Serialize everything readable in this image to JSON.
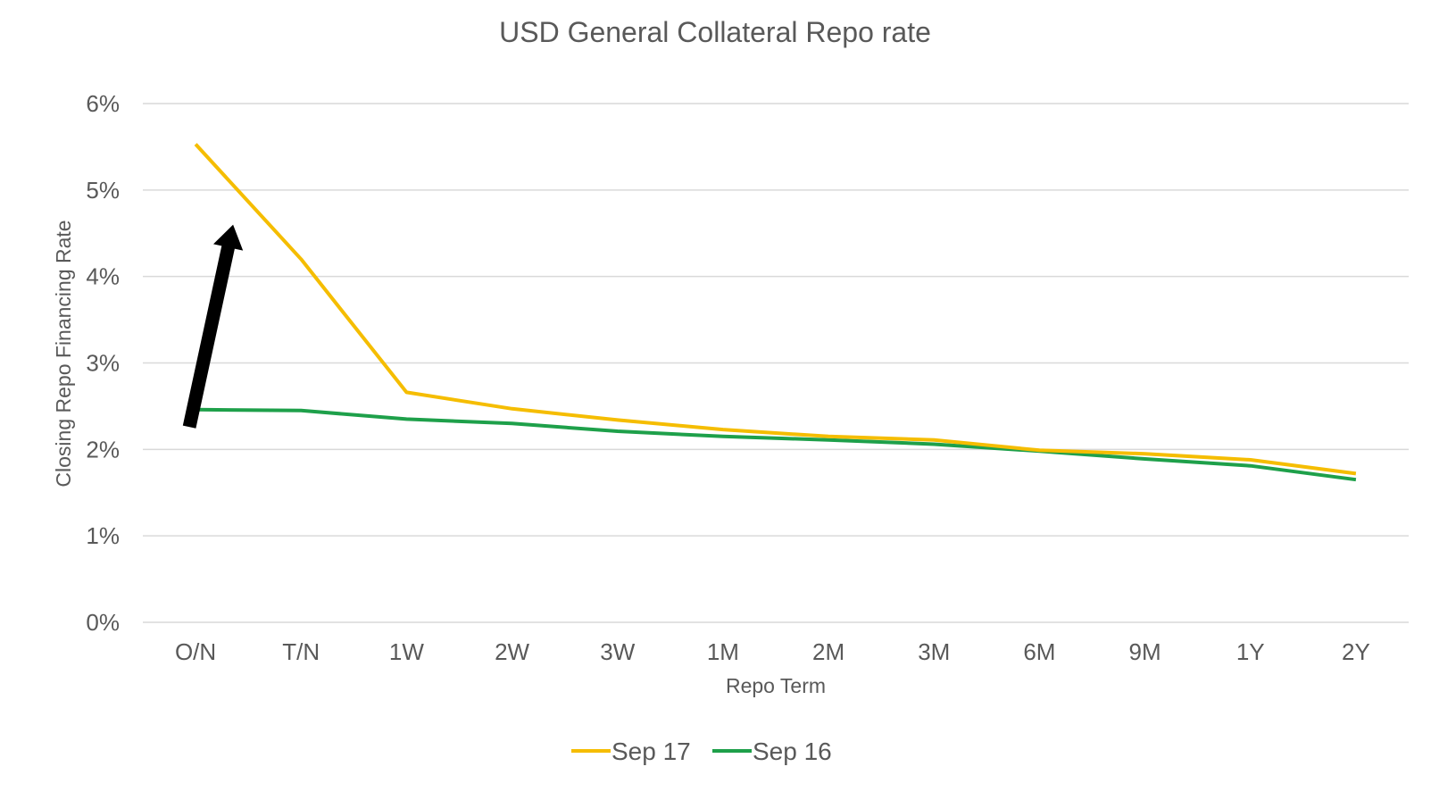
{
  "chart_data": {
    "type": "line",
    "title": "USD General Collateral Repo rate",
    "xlabel": "Repo Term",
    "ylabel": "Closing Repo Financing Rate",
    "categories": [
      "O/N",
      "T/N",
      "1W",
      "2W",
      "3W",
      "1M",
      "2M",
      "3M",
      "6M",
      "9M",
      "1Y",
      "2Y"
    ],
    "ylim": [
      0,
      6
    ],
    "yticks": [
      0,
      1,
      2,
      3,
      4,
      5,
      6
    ],
    "ytick_labels": [
      "0%",
      "1%",
      "2%",
      "3%",
      "4%",
      "5%",
      "6%"
    ],
    "grid": true,
    "legend_position": "bottom-center",
    "series": [
      {
        "name": "Sep 17",
        "color": "#f5bd00",
        "values": [
          5.53,
          4.2,
          2.66,
          2.47,
          2.34,
          2.23,
          2.15,
          2.11,
          1.99,
          1.95,
          1.88,
          1.72
        ]
      },
      {
        "name": "Sep 16",
        "color": "#1ea04a",
        "values": [
          2.46,
          2.45,
          2.35,
          2.3,
          2.21,
          2.15,
          2.11,
          2.06,
          1.98,
          1.89,
          1.81,
          1.65
        ]
      }
    ],
    "annotation": {
      "type": "arrow",
      "icon": "up-arrow-icon",
      "color": "#000000",
      "from": {
        "category": "O/N",
        "value": 2.6
      },
      "to": {
        "category": "O/N",
        "value": 4.6
      }
    }
  }
}
